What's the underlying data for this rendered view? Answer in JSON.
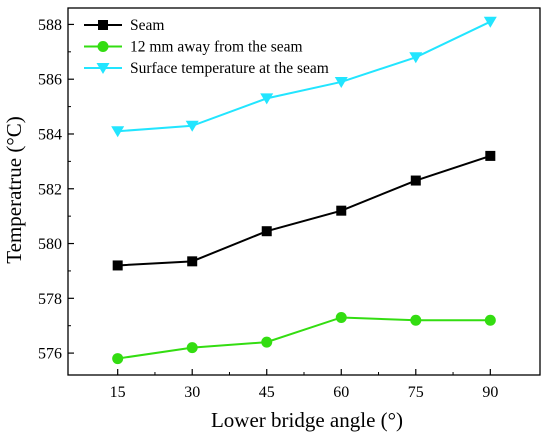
{
  "chart_data": {
    "type": "line",
    "title": "",
    "xlabel": "Lower bridge angle (°)",
    "ylabel": "Temperatrue (°C)",
    "x": [
      15,
      30,
      45,
      60,
      75,
      90
    ],
    "xticks": [
      "15",
      "30",
      "45",
      "60",
      "75",
      "90"
    ],
    "yticks": [
      "576",
      "578",
      "580",
      "582",
      "584",
      "586",
      "588"
    ],
    "ylim": [
      575.2,
      588.6
    ],
    "xlim": [
      5,
      100
    ],
    "grid": false,
    "legend_position": "top-left",
    "series": [
      {
        "name": "Seam",
        "marker": "square",
        "color": "#000000",
        "values": [
          579.2,
          579.35,
          580.45,
          581.2,
          582.3,
          583.2
        ]
      },
      {
        "name": "12 mm away from the seam",
        "marker": "circle",
        "color": "#33dd11",
        "values": [
          575.8,
          576.2,
          576.4,
          577.3,
          577.2,
          577.2
        ]
      },
      {
        "name": "Surface temperature at the seam",
        "marker": "triangle-down",
        "color": "#22e5ff",
        "values": [
          584.1,
          584.3,
          585.3,
          585.9,
          586.8,
          588.1
        ]
      }
    ]
  }
}
